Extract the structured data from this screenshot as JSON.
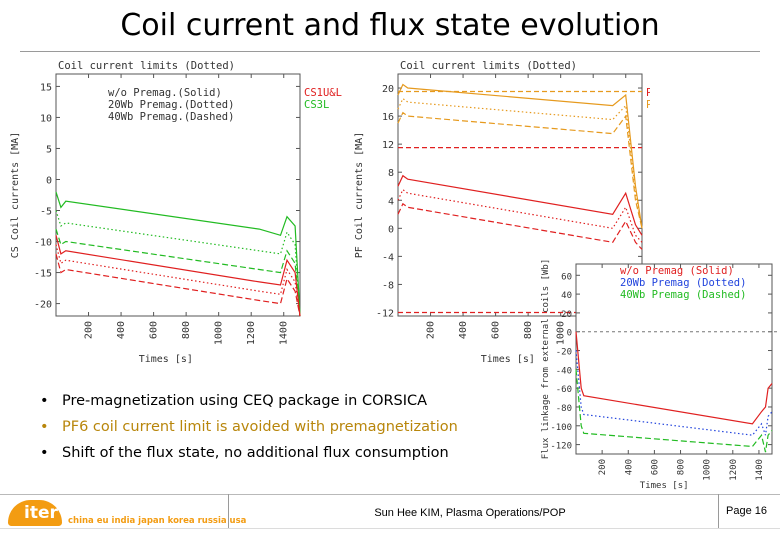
{
  "slide": {
    "title": "Coil current and flux state evolution",
    "bullets": [
      "Pre-magnetization using CEQ package in CORSICA",
      "PF6 coil current limit is avoided with premagnetization",
      "Shift of the flux state, no additional flux consumption"
    ],
    "bullet_marker": "•",
    "footer": {
      "author": "Sun Hee KIM, Plasma Operations/POP",
      "page": "Page 16",
      "logo_text": "iter",
      "logo_members": "china eu india japan korea russia usa"
    }
  },
  "chart_data": [
    {
      "type": "line",
      "title": "Coil current limits (Dotted)",
      "xlabel": "Times [s]",
      "ylabel": "CS Coil currents [MA]",
      "xlim": [
        0,
        1500
      ],
      "ylim": [
        -22,
        17
      ],
      "xticks": [
        "200",
        "400",
        "600",
        "800",
        "1000",
        "1200",
        "1400"
      ],
      "yticks": [
        "15",
        "10",
        "5",
        "0",
        "-5",
        "-10",
        "-15",
        "-20"
      ],
      "legend_text": [
        "w/o  Premag.(Solid)",
        "20Wb Premag.(Dotted)",
        "40Wb Premag.(Dashed)"
      ],
      "coil_labels": [
        "CS1U&L",
        "CS3L"
      ],
      "colors": {
        "CS1U&L": "#e02020",
        "CS3L": "#22bb22"
      },
      "series": [
        {
          "name": "CS3L",
          "style": "solid",
          "x": [
            0,
            30,
            60,
            1250,
            1380,
            1420,
            1470,
            1500
          ],
          "y": [
            -2,
            -4.5,
            -3.5,
            -8,
            -9,
            -6,
            -7.5,
            -22
          ]
        },
        {
          "name": "CS3L",
          "style": "dotted",
          "x": [
            0,
            30,
            60,
            1250,
            1380,
            1420,
            1470,
            1500
          ],
          "y": [
            -5,
            -7.5,
            -7,
            -11.5,
            -12,
            -8.5,
            -10.5,
            -22
          ]
        },
        {
          "name": "CS3L",
          "style": "dashed",
          "x": [
            0,
            30,
            60,
            1250,
            1380,
            1420,
            1470,
            1500
          ],
          "y": [
            -8,
            -10.5,
            -10,
            -14.5,
            -15,
            -11.5,
            -13.5,
            -22
          ]
        },
        {
          "name": "CS1U&L",
          "style": "solid",
          "x": [
            0,
            30,
            60,
            1250,
            1380,
            1420,
            1470,
            1500
          ],
          "y": [
            -9,
            -12,
            -11.5,
            -16.5,
            -17,
            -13,
            -15,
            -22
          ]
        },
        {
          "name": "CS1U&L",
          "style": "dotted",
          "x": [
            0,
            30,
            60,
            1250,
            1380,
            1420,
            1470,
            1500
          ],
          "y": [
            -10.5,
            -13.5,
            -13,
            -18,
            -18.5,
            -14.5,
            -16.5,
            -22
          ]
        },
        {
          "name": "CS1U&L",
          "style": "dashed",
          "x": [
            0,
            30,
            60,
            1250,
            1380,
            1420,
            1470,
            1500
          ],
          "y": [
            -12,
            -15,
            -14.5,
            -19.5,
            -20,
            -16,
            -18,
            -22
          ]
        }
      ]
    },
    {
      "type": "line",
      "title": "Coil current limits (Dotted)",
      "xlabel": "Times [s]",
      "ylabel": "PF Coil currents [MA]",
      "xlim": [
        0,
        1500
      ],
      "ylim": [
        -12.5,
        22
      ],
      "xticks": [
        "200",
        "400",
        "600",
        "800",
        "1000",
        "1200",
        "1400"
      ],
      "yticks": [
        "20",
        "16",
        "12",
        "8",
        "4",
        "0",
        "-4",
        "-8",
        "-12"
      ],
      "coil_labels": [
        "PF1",
        "PF6"
      ],
      "colors": {
        "PF1": "#e02020",
        "PF6": "#e69a1e"
      },
      "limits": [
        {
          "name": "PF6",
          "value": 19.5
        },
        {
          "name": "PF1",
          "value": 11.5
        },
        {
          "name": "PF1",
          "value": -12
        }
      ],
      "series": [
        {
          "name": "PF6",
          "style": "solid",
          "x": [
            0,
            30,
            60,
            1320,
            1400,
            1460,
            1500
          ],
          "y": [
            19,
            20.5,
            20,
            17.5,
            19,
            6,
            0
          ]
        },
        {
          "name": "PF6",
          "style": "dotted",
          "x": [
            0,
            30,
            60,
            1320,
            1400,
            1460,
            1500
          ],
          "y": [
            17,
            18.5,
            18,
            15.5,
            17.5,
            5,
            0
          ]
        },
        {
          "name": "PF6",
          "style": "dashed",
          "x": [
            0,
            30,
            60,
            1320,
            1400,
            1460,
            1500
          ],
          "y": [
            15,
            16.5,
            16,
            13.5,
            16,
            4,
            0
          ]
        },
        {
          "name": "PF1",
          "style": "solid",
          "x": [
            0,
            30,
            60,
            1320,
            1400,
            1460,
            1500
          ],
          "y": [
            6,
            7.5,
            7,
            2,
            5,
            0.5,
            -1
          ]
        },
        {
          "name": "PF1",
          "style": "dotted",
          "x": [
            0,
            30,
            60,
            1320,
            1400,
            1460,
            1500
          ],
          "y": [
            4,
            5.5,
            5,
            0,
            3,
            -1,
            -2
          ]
        },
        {
          "name": "PF1",
          "style": "dashed",
          "x": [
            0,
            30,
            60,
            1320,
            1400,
            1460,
            1500
          ],
          "y": [
            2,
            3.5,
            3,
            -2,
            1,
            -2,
            -3
          ]
        }
      ]
    },
    {
      "type": "line",
      "xlabel": "Times [s]",
      "ylabel": "Flux linkage from external coils [Wb]",
      "xlim": [
        0,
        1500
      ],
      "ylim": [
        -130,
        72
      ],
      "xticks": [
        "200",
        "400",
        "600",
        "800",
        "1000",
        "1200",
        "1400"
      ],
      "yticks": [
        "60",
        "40",
        "20",
        "0",
        "-20",
        "-40",
        "-60",
        "-80",
        "-100",
        "-120"
      ],
      "legend_text": [
        "w/o  Premag (Solid)",
        "20Wb Premag (Dotted)",
        "40Wb Premag (Dashed)"
      ],
      "colors": {
        "w/o": "#e02020",
        "20Wb": "#2244dd",
        "40Wb": "#22bb22"
      },
      "reference_line": 0,
      "series": [
        {
          "name": "w/o",
          "style": "solid",
          "x": [
            0,
            40,
            60,
            1350,
            1420,
            1450,
            1470,
            1500
          ],
          "y": [
            0,
            -60,
            -68,
            -98,
            -85,
            -80,
            -60,
            -55
          ]
        },
        {
          "name": "20Wb",
          "style": "dotted",
          "x": [
            0,
            40,
            60,
            1350,
            1420,
            1450,
            1470,
            1500
          ],
          "y": [
            -20,
            -80,
            -88,
            -110,
            -98,
            -110,
            -90,
            -85
          ]
        },
        {
          "name": "40Wb",
          "style": "dashed",
          "x": [
            0,
            40,
            60,
            1350,
            1420,
            1450,
            1470,
            1500
          ],
          "y": [
            -40,
            -100,
            -108,
            -122,
            -110,
            -128,
            -110,
            -105
          ]
        }
      ]
    }
  ]
}
